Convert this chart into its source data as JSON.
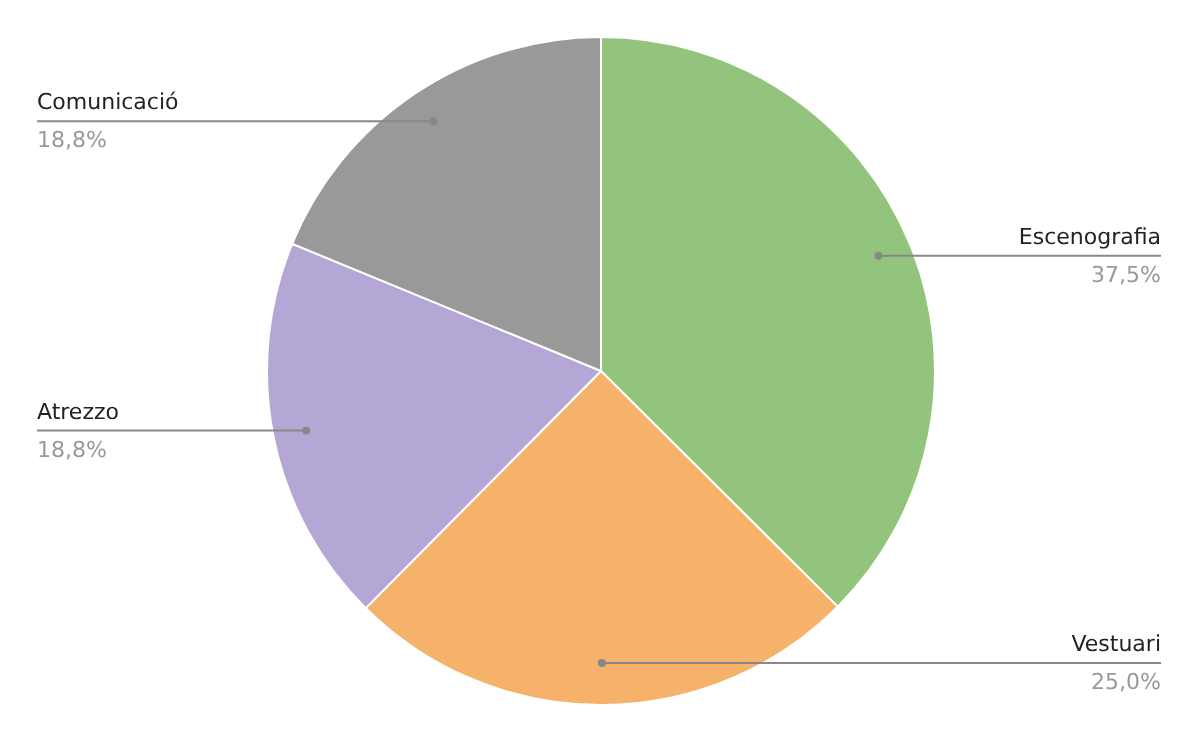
{
  "chart_data": {
    "type": "pie",
    "categories": [
      "Escenografia",
      "Vestuari",
      "Atrezzo",
      "Comunicació"
    ],
    "values": [
      37.5,
      25.0,
      18.8,
      18.8
    ],
    "value_labels": [
      "37,5%",
      "25,0%",
      "18,8%",
      "18,8%"
    ],
    "colors": [
      "#93c47d",
      "#f6b26b",
      "#b4a7d6",
      "#999999"
    ]
  }
}
